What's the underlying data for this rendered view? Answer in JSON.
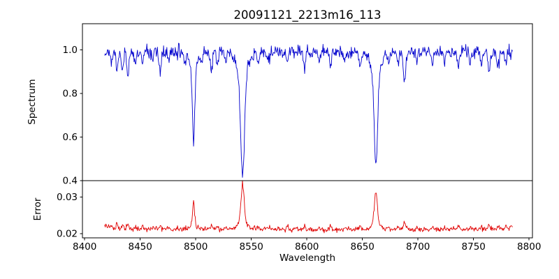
{
  "title": "20091121_2213m16_113",
  "xlabel": "Wavelength",
  "x_axis": {
    "ticks": [
      8400,
      8450,
      8500,
      8550,
      8600,
      8650,
      8700,
      8750,
      8800
    ],
    "tick_labels": [
      "8400",
      "8450",
      "8500",
      "8550",
      "8600",
      "8650",
      "8700",
      "8750",
      "8800"
    ],
    "lim": [
      8398,
      8803
    ]
  },
  "panels": [
    {
      "ylabel": "Spectrum",
      "tick_values": [
        0.4,
        0.6,
        0.8,
        1.0
      ],
      "tick_labels": [
        "0.4",
        "0.6",
        "0.8",
        "1.0"
      ],
      "lim": [
        0.4,
        1.12
      ],
      "line_color": "#0000cd"
    },
    {
      "ylabel": "Error",
      "tick_values": [
        0.02,
        0.03
      ],
      "tick_labels": [
        "0.02",
        "0.03"
      ],
      "lim": [
        0.0189,
        0.0344
      ],
      "line_color": "#e00000"
    }
  ],
  "chart_data": [
    {
      "type": "line",
      "series": "spectrum",
      "title": "20091121_2213m16_113",
      "xlabel": "Wavelength",
      "ylabel": "Spectrum",
      "color": "#0000cd",
      "x_start": 8418,
      "x_end": 8785,
      "x_step": 0.5,
      "continuum": 0.99,
      "noise_sigma": 0.014,
      "seed": 11,
      "absorption_lines_strong": [
        [
          8498.0,
          0.4,
          1.1
        ],
        [
          8542.1,
          0.56,
          1.7
        ],
        [
          8662.1,
          0.525,
          1.5
        ]
      ],
      "absorption_line_minima": [
        {
          "x": 8498.0,
          "flux": 0.59
        },
        {
          "x": 8542.1,
          "flux": 0.43
        },
        {
          "x": 8662.1,
          "flux": 0.465
        }
      ],
      "absorption_lines_weak": [
        [
          8424,
          0.05,
          0.8
        ],
        [
          8429,
          0.07,
          0.9
        ],
        [
          8434,
          0.09,
          0.9
        ],
        [
          8439,
          0.11,
          1.0
        ],
        [
          8446,
          0.07,
          0.8
        ],
        [
          8452,
          0.05,
          0.7
        ],
        [
          8461,
          0.05,
          0.8
        ],
        [
          8468,
          0.09,
          1.0
        ],
        [
          8476,
          0.05,
          0.8
        ],
        [
          8490,
          0.06,
          0.9
        ],
        [
          8505,
          0.05,
          0.8
        ],
        [
          8514,
          0.09,
          1.0
        ],
        [
          8519,
          0.06,
          0.8
        ],
        [
          8527,
          0.05,
          0.8
        ],
        [
          8556,
          0.05,
          0.8
        ],
        [
          8565,
          0.04,
          0.8
        ],
        [
          8582,
          0.06,
          0.9
        ],
        [
          8598,
          0.07,
          0.9
        ],
        [
          8611,
          0.05,
          0.8
        ],
        [
          8621,
          0.07,
          0.9
        ],
        [
          8634,
          0.04,
          0.8
        ],
        [
          8648,
          0.07,
          0.9
        ],
        [
          8674,
          0.06,
          0.9
        ],
        [
          8682,
          0.05,
          0.8
        ],
        [
          8688,
          0.13,
          1.1
        ],
        [
          8699,
          0.04,
          0.8
        ],
        [
          8713,
          0.06,
          0.9
        ],
        [
          8724,
          0.04,
          0.8
        ],
        [
          8736,
          0.07,
          0.9
        ],
        [
          8747,
          0.05,
          0.8
        ],
        [
          8757,
          0.06,
          0.9
        ],
        [
          8764,
          0.09,
          1.0
        ],
        [
          8772,
          0.07,
          0.9
        ],
        [
          8779,
          0.05,
          0.8
        ]
      ],
      "ylim": [
        0.4,
        1.12
      ],
      "yticks": [
        0.4,
        0.6,
        0.8,
        1.0
      ],
      "xlim": [
        8398,
        8803
      ],
      "grid": false,
      "legend": "none"
    },
    {
      "type": "line",
      "series": "error",
      "ylabel": "Error",
      "color": "#e00000",
      "baseline": 0.0211,
      "noise_sigma": 0.0003,
      "edge_bump": 0.0013,
      "model": "baseline * (1/flux)^0.55, spikes at absorption lines",
      "peaks": [
        {
          "x": 8498.0,
          "value": 0.0275
        },
        {
          "x": 8542.1,
          "value": 0.0335
        },
        {
          "x": 8662.1,
          "value": 0.033
        }
      ],
      "ylim": [
        0.0189,
        0.0344
      ],
      "yticks": [
        0.02,
        0.03
      ],
      "grid": false,
      "legend": "none"
    }
  ]
}
